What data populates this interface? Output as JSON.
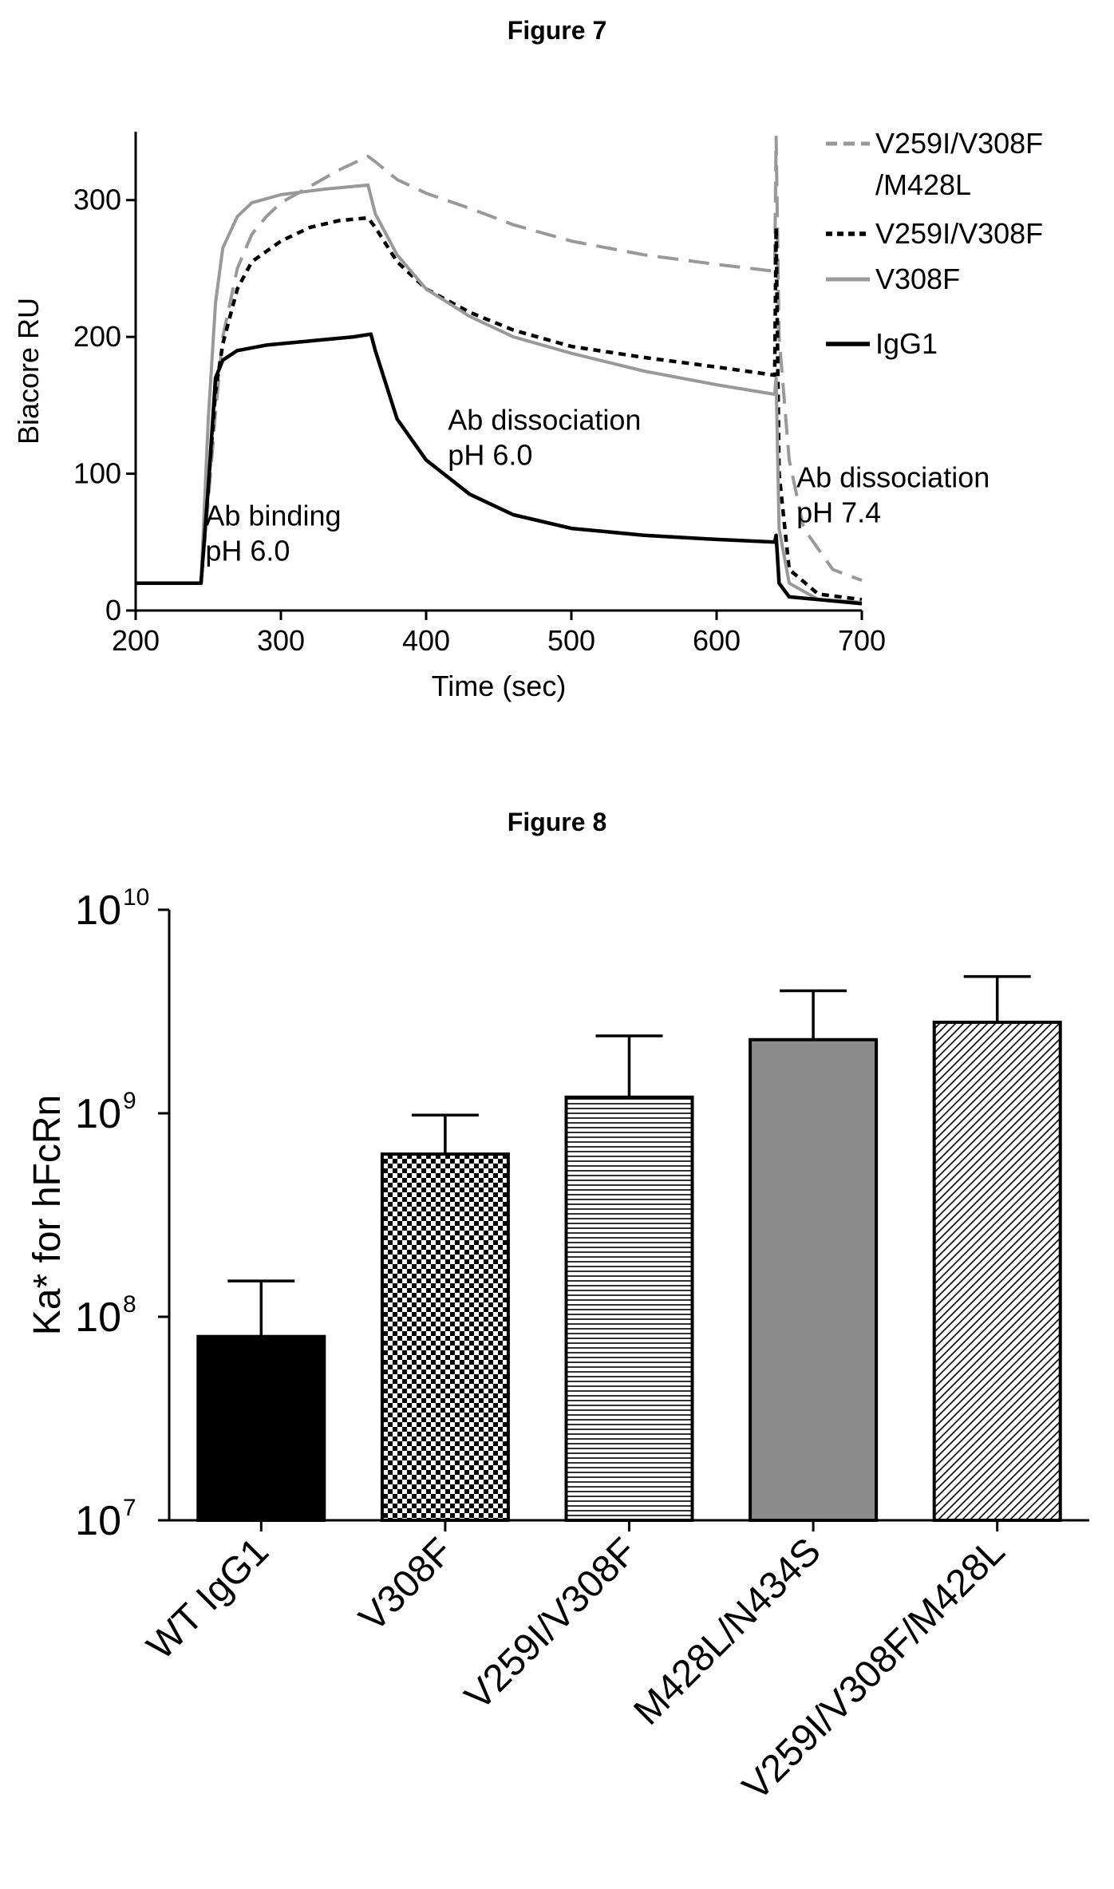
{
  "figures": {
    "fig7_title": "Figure 7",
    "fig8_title": "Figure 8"
  },
  "chart_data": [
    {
      "type": "line",
      "title": "Figure 7",
      "xlabel": "Time (sec)",
      "ylabel": "Biacore RU",
      "xlim": [
        200,
        700
      ],
      "ylim": [
        0,
        350
      ],
      "xticks": [
        200,
        300,
        400,
        500,
        600,
        700
      ],
      "yticks": [
        0,
        100,
        200,
        300
      ],
      "legend_position": "right",
      "legend": [
        "V259I/V308F\n/M428L",
        "V259I/V308F",
        "V308F",
        "IgG1"
      ],
      "annotations": [
        {
          "text": [
            "Ab binding",
            "pH 6.0"
          ],
          "x": 248,
          "y": 62
        },
        {
          "text": [
            "Ab dissociation",
            "pH 6.0"
          ],
          "x": 415,
          "y": 132
        },
        {
          "text": [
            "Ab dissociation",
            "pH 7.4"
          ],
          "x": 655,
          "y": 90
        }
      ],
      "series": [
        {
          "name": "V259I/V308F/M428L",
          "color": "#999999",
          "dash": "26,13",
          "width": 4,
          "points": [
            [
              200,
              20
            ],
            [
              245,
              20
            ],
            [
              250,
              80
            ],
            [
              255,
              145
            ],
            [
              260,
              200
            ],
            [
              270,
              250
            ],
            [
              280,
              275
            ],
            [
              290,
              288
            ],
            [
              300,
              298
            ],
            [
              320,
              310
            ],
            [
              340,
              322
            ],
            [
              360,
              332
            ],
            [
              365,
              328
            ],
            [
              380,
              315
            ],
            [
              400,
              305
            ],
            [
              430,
              294
            ],
            [
              460,
              282
            ],
            [
              500,
              270
            ],
            [
              550,
              260
            ],
            [
              600,
              253
            ],
            [
              640,
              248
            ],
            [
              641,
              346
            ],
            [
              643,
              200
            ],
            [
              650,
              110
            ],
            [
              660,
              60
            ],
            [
              680,
              30
            ],
            [
              700,
              22
            ]
          ]
        },
        {
          "name": "V259I/V308F",
          "color": "#000000",
          "dash": "9,7",
          "width": 4.5,
          "points": [
            [
              200,
              20
            ],
            [
              245,
              20
            ],
            [
              250,
              90
            ],
            [
              255,
              160
            ],
            [
              260,
              195
            ],
            [
              270,
              235
            ],
            [
              280,
              255
            ],
            [
              300,
              270
            ],
            [
              320,
              280
            ],
            [
              340,
              285
            ],
            [
              360,
              287
            ],
            [
              365,
              280
            ],
            [
              380,
              255
            ],
            [
              400,
              235
            ],
            [
              430,
              218
            ],
            [
              460,
              205
            ],
            [
              500,
              193
            ],
            [
              550,
              185
            ],
            [
              600,
              178
            ],
            [
              640,
              172
            ],
            [
              641,
              280
            ],
            [
              643,
              100
            ],
            [
              650,
              30
            ],
            [
              670,
              12
            ],
            [
              700,
              8
            ]
          ]
        },
        {
          "name": "V308F",
          "color": "#999999",
          "dash": "",
          "width": 4,
          "points": [
            [
              200,
              20
            ],
            [
              245,
              20
            ],
            [
              250,
              140
            ],
            [
              255,
              225
            ],
            [
              260,
              265
            ],
            [
              270,
              288
            ],
            [
              280,
              298
            ],
            [
              300,
              304
            ],
            [
              330,
              308
            ],
            [
              360,
              311
            ],
            [
              365,
              290
            ],
            [
              380,
              260
            ],
            [
              400,
              235
            ],
            [
              430,
              215
            ],
            [
              460,
              200
            ],
            [
              500,
              188
            ],
            [
              550,
              175
            ],
            [
              600,
              165
            ],
            [
              640,
              158
            ],
            [
              641,
              170
            ],
            [
              643,
              60
            ],
            [
              650,
              20
            ],
            [
              670,
              8
            ],
            [
              700,
              6
            ]
          ]
        },
        {
          "name": "IgG1",
          "color": "#000000",
          "dash": "",
          "width": 4.5,
          "points": [
            [
              200,
              20
            ],
            [
              245,
              20
            ],
            [
              250,
              90
            ],
            [
              255,
              170
            ],
            [
              260,
              183
            ],
            [
              270,
              190
            ],
            [
              290,
              194
            ],
            [
              320,
              197
            ],
            [
              350,
              200
            ],
            [
              362,
              202
            ],
            [
              365,
              190
            ],
            [
              380,
              140
            ],
            [
              400,
              110
            ],
            [
              430,
              85
            ],
            [
              460,
              70
            ],
            [
              500,
              60
            ],
            [
              550,
              55
            ],
            [
              600,
              52
            ],
            [
              640,
              50
            ],
            [
              641,
              55
            ],
            [
              643,
              20
            ],
            [
              650,
              10
            ],
            [
              700,
              5
            ]
          ]
        }
      ]
    },
    {
      "type": "bar",
      "title": "Figure 8",
      "xlabel": "",
      "ylabel": "Ka* for hFcRn",
      "yscale": "log",
      "ylim": [
        10000000,
        10000000000
      ],
      "ytick_labels": [
        {
          "base": "10",
          "exp": "7",
          "value": 10000000
        },
        {
          "base": "10",
          "exp": "8",
          "value": 100000000
        },
        {
          "base": "10",
          "exp": "9",
          "value": 1000000000
        },
        {
          "base": "10",
          "exp": "10",
          "value": 10000000000
        }
      ],
      "categories": [
        "WT IgG1",
        "V308F",
        "V259I/V308F",
        "M428L/N434S",
        "V259I/V308F/M428L"
      ],
      "values": [
        80000000,
        630000000,
        1200000000,
        2300000000,
        2800000000
      ],
      "error_upper": [
        150000000,
        980000000,
        2400000000,
        4000000000,
        4700000000
      ],
      "fills": [
        "solid-black",
        "checker",
        "horizontal-lines",
        "solid-gray",
        "diagonal-lines"
      ]
    }
  ]
}
